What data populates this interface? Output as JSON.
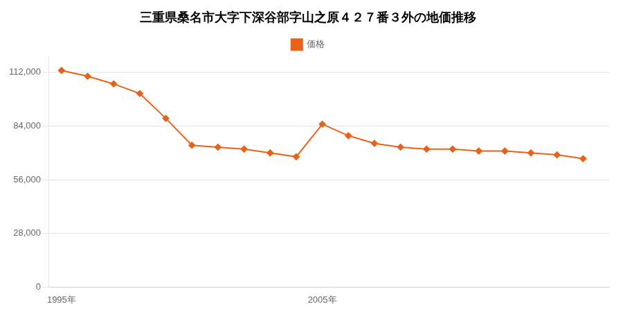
{
  "chart_data": {
    "type": "line",
    "title": "三重県桑名市大字下深谷部字山之原４２７番３外の地価推移",
    "x": [
      1995,
      1996,
      1997,
      1998,
      1999,
      2000,
      2001,
      2002,
      2003,
      2004,
      2005,
      2006,
      2007,
      2008,
      2009,
      2010,
      2011,
      2012,
      2013,
      2014,
      2015
    ],
    "series": [
      {
        "name": "価格",
        "color": "#E8621A",
        "marker": "diamond",
        "values": [
          113000,
          110000,
          106000,
          101000,
          88000,
          74000,
          73000,
          72000,
          70000,
          68000,
          85000,
          79000,
          75000,
          73000,
          72000,
          72000,
          71000,
          71000,
          70000,
          69000,
          67000
        ]
      }
    ],
    "xlim": [
      1994.5,
      2016
    ],
    "xticks": [
      {
        "value": 1995,
        "label": "1995年"
      },
      {
        "value": 2005,
        "label": "2005年"
      }
    ],
    "ylim": [
      0,
      120000
    ],
    "yticks": [
      0,
      {
        "value": 28000,
        "label": "28,000"
      },
      {
        "value": 56000,
        "label": "56,000"
      },
      {
        "value": 84000,
        "label": "84,000"
      },
      {
        "value": 112000,
        "label": "112,000"
      }
    ],
    "grid": "y",
    "legend": "top"
  }
}
